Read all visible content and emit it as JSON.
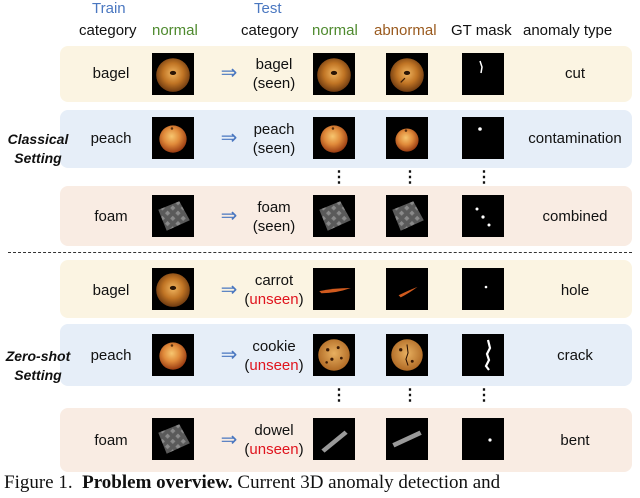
{
  "headers": {
    "train": "Train",
    "train_category": "category",
    "train_normal": "normal",
    "test": "Test",
    "test_category": "category",
    "test_normal": "normal",
    "test_abnormal": "abnormal",
    "gt_mask": "GT mask",
    "anomaly_type": "anomaly type"
  },
  "settings": {
    "classical": [
      "Classical",
      "Setting"
    ],
    "zero_shot": [
      "Zero-shot",
      "Setting"
    ]
  },
  "classical_rows": [
    {
      "train_category": "bagel",
      "test_category": "bagel",
      "tag": "(seen)",
      "anomaly": "cut"
    },
    {
      "train_category": "peach",
      "test_category": "peach",
      "tag": "(seen)",
      "anomaly": "contamination"
    },
    {
      "train_category": "foam",
      "test_category": "foam",
      "tag": "(seen)",
      "anomaly": "combined"
    }
  ],
  "zero_shot_rows": [
    {
      "train_category": "bagel",
      "test_category": "carrot",
      "tag_open": "(",
      "tag": "unseen",
      "tag_close": ")",
      "anomaly": "hole"
    },
    {
      "train_category": "peach",
      "test_category": "cookie",
      "tag_open": "(",
      "tag": "unseen",
      "tag_close": ")",
      "anomaly": "crack"
    },
    {
      "train_category": "foam",
      "test_category": "dowel",
      "tag_open": "(",
      "tag": "unseen",
      "tag_close": ")",
      "anomaly": "bent"
    }
  ],
  "arrow": "⇒",
  "ellipsis": "⋮",
  "caption": {
    "prefix": "Figure 1.",
    "bold": "Problem overview.",
    "rest": "Current 3D anomaly detection and"
  },
  "icons": {
    "bagel": "bagel-photo-icon",
    "peach": "peach-photo-icon",
    "foam": "foam-photo-icon",
    "carrot": "carrot-photo-icon",
    "cookie": "cookie-photo-icon",
    "dowel": "dowel-photo-icon",
    "mask": "gt-mask-icon"
  },
  "colors": {
    "header_blue": "#4a77c0",
    "header_green": "#4e8a2e",
    "header_brown": "#9a5a1e",
    "unseen_red": "#e0141e",
    "band_yellow": "#fbf4e2",
    "band_blue": "#e6eef8",
    "band_peach": "#f9ece3"
  }
}
